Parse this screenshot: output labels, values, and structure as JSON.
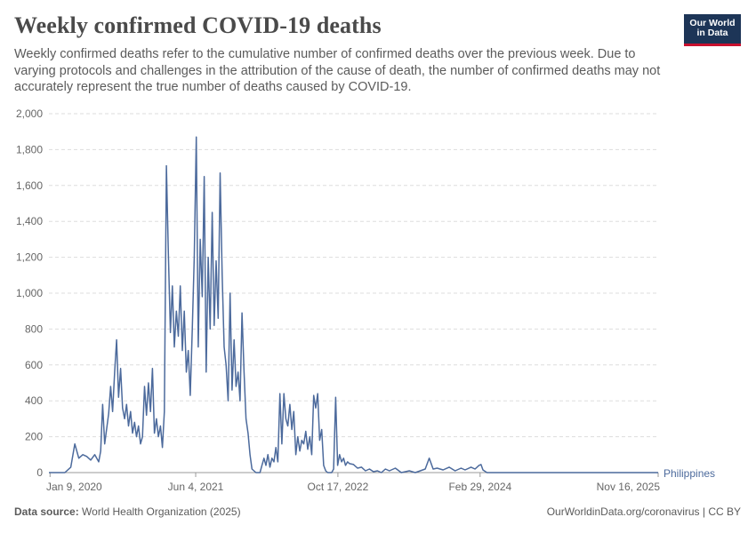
{
  "header": {
    "title": "Weekly confirmed COVID-19 deaths",
    "subtitle": "Weekly confirmed deaths refer to the cumulative number of confirmed deaths over the previous week. Due to varying protocols and challenges in the attribution of the cause of death, the number of confirmed deaths may not accurately represent the true number of deaths caused by COVID-19.",
    "logo_line1": "Our World",
    "logo_line2": "in Data"
  },
  "colors": {
    "series": "#4c6a9c",
    "grid": "#dddddd",
    "logo_bg": "#1d3557",
    "logo_accent": "#c8102e"
  },
  "footer": {
    "source_label": "Data source:",
    "source_value": "World Health Organization (2025)",
    "url": "OurWorldinData.org/coronavirus | CC BY"
  },
  "chart_data": {
    "type": "line",
    "title": "Weekly confirmed COVID-19 deaths",
    "xlabel": "",
    "ylabel": "",
    "xlim": [
      "2020-01-05",
      "2025-11-16"
    ],
    "ylim": [
      0,
      2000
    ],
    "yticks": [
      0,
      200,
      400,
      600,
      800,
      1000,
      1200,
      1400,
      1600,
      1800,
      2000
    ],
    "ytick_labels": [
      "0",
      "200",
      "400",
      "600",
      "800",
      "1,000",
      "1,200",
      "1,400",
      "1,600",
      "1,800",
      "2,000"
    ],
    "xticks": [
      "2020-01-09",
      "2021-06-04",
      "2022-10-17",
      "2024-02-29",
      "2025-11-16"
    ],
    "xtick_labels": [
      "Jan 9, 2020",
      "Jun 4, 2021",
      "Oct 17, 2022",
      "Feb 29, 2024",
      "Nov 16, 2025"
    ],
    "grid": "horizontal dashed",
    "series": [
      {
        "name": "Philippines",
        "color": "#4c6a9c",
        "points": [
          [
            "2020-01-05",
            0
          ],
          [
            "2020-03-01",
            0
          ],
          [
            "2020-03-22",
            30
          ],
          [
            "2020-04-05",
            160
          ],
          [
            "2020-04-19",
            80
          ],
          [
            "2020-05-03",
            100
          ],
          [
            "2020-05-17",
            90
          ],
          [
            "2020-05-31",
            70
          ],
          [
            "2020-06-14",
            100
          ],
          [
            "2020-06-28",
            60
          ],
          [
            "2020-07-05",
            120
          ],
          [
            "2020-07-12",
            380
          ],
          [
            "2020-07-19",
            160
          ],
          [
            "2020-08-02",
            330
          ],
          [
            "2020-08-09",
            480
          ],
          [
            "2020-08-16",
            340
          ],
          [
            "2020-08-23",
            560
          ],
          [
            "2020-08-30",
            740
          ],
          [
            "2020-09-06",
            420
          ],
          [
            "2020-09-13",
            580
          ],
          [
            "2020-09-20",
            360
          ],
          [
            "2020-09-27",
            300
          ],
          [
            "2020-10-04",
            380
          ],
          [
            "2020-10-11",
            260
          ],
          [
            "2020-10-18",
            340
          ],
          [
            "2020-10-25",
            220
          ],
          [
            "2020-11-01",
            280
          ],
          [
            "2020-11-08",
            200
          ],
          [
            "2020-11-15",
            260
          ],
          [
            "2020-11-22",
            160
          ],
          [
            "2020-11-29",
            200
          ],
          [
            "2020-12-06",
            480
          ],
          [
            "2020-12-13",
            320
          ],
          [
            "2020-12-20",
            500
          ],
          [
            "2020-12-27",
            340
          ],
          [
            "2021-01-03",
            580
          ],
          [
            "2021-01-10",
            220
          ],
          [
            "2021-01-17",
            300
          ],
          [
            "2021-01-24",
            200
          ],
          [
            "2021-01-31",
            260
          ],
          [
            "2021-02-07",
            140
          ],
          [
            "2021-02-14",
            340
          ],
          [
            "2021-02-21",
            1710
          ],
          [
            "2021-02-28",
            1220
          ],
          [
            "2021-03-07",
            780
          ],
          [
            "2021-03-14",
            1040
          ],
          [
            "2021-03-21",
            700
          ],
          [
            "2021-03-28",
            900
          ],
          [
            "2021-04-04",
            760
          ],
          [
            "2021-04-11",
            1040
          ],
          [
            "2021-04-18",
            680
          ],
          [
            "2021-04-25",
            900
          ],
          [
            "2021-05-02",
            560
          ],
          [
            "2021-05-09",
            680
          ],
          [
            "2021-05-16",
            430
          ],
          [
            "2021-05-23",
            800
          ],
          [
            "2021-05-30",
            1200
          ],
          [
            "2021-06-06",
            1870
          ],
          [
            "2021-06-13",
            700
          ],
          [
            "2021-06-20",
            1300
          ],
          [
            "2021-06-27",
            980
          ],
          [
            "2021-07-04",
            1650
          ],
          [
            "2021-07-11",
            560
          ],
          [
            "2021-07-18",
            1200
          ],
          [
            "2021-07-25",
            800
          ],
          [
            "2021-08-01",
            1450
          ],
          [
            "2021-08-08",
            820
          ],
          [
            "2021-08-15",
            1180
          ],
          [
            "2021-08-22",
            860
          ],
          [
            "2021-08-29",
            1670
          ],
          [
            "2021-09-05",
            1100
          ],
          [
            "2021-09-12",
            700
          ],
          [
            "2021-09-19",
            600
          ],
          [
            "2021-09-26",
            400
          ],
          [
            "2021-10-03",
            1000
          ],
          [
            "2021-10-10",
            460
          ],
          [
            "2021-10-17",
            740
          ],
          [
            "2021-10-24",
            480
          ],
          [
            "2021-10-31",
            560
          ],
          [
            "2021-11-07",
            400
          ],
          [
            "2021-11-14",
            890
          ],
          [
            "2021-11-21",
            560
          ],
          [
            "2021-11-28",
            300
          ],
          [
            "2021-12-05",
            220
          ],
          [
            "2021-12-12",
            100
          ],
          [
            "2021-12-19",
            20
          ],
          [
            "2022-01-02",
            0
          ],
          [
            "2022-01-16",
            0
          ],
          [
            "2022-01-23",
            40
          ],
          [
            "2022-01-30",
            80
          ],
          [
            "2022-02-06",
            40
          ],
          [
            "2022-02-13",
            100
          ],
          [
            "2022-02-20",
            30
          ],
          [
            "2022-02-27",
            80
          ],
          [
            "2022-03-06",
            60
          ],
          [
            "2022-03-13",
            140
          ],
          [
            "2022-03-20",
            60
          ],
          [
            "2022-03-27",
            440
          ],
          [
            "2022-04-03",
            160
          ],
          [
            "2022-04-10",
            440
          ],
          [
            "2022-04-17",
            300
          ],
          [
            "2022-04-24",
            260
          ],
          [
            "2022-05-01",
            380
          ],
          [
            "2022-05-08",
            240
          ],
          [
            "2022-05-15",
            340
          ],
          [
            "2022-05-22",
            100
          ],
          [
            "2022-05-29",
            200
          ],
          [
            "2022-06-05",
            120
          ],
          [
            "2022-06-12",
            180
          ],
          [
            "2022-06-19",
            160
          ],
          [
            "2022-06-26",
            230
          ],
          [
            "2022-07-03",
            130
          ],
          [
            "2022-07-10",
            200
          ],
          [
            "2022-07-17",
            100
          ],
          [
            "2022-07-24",
            430
          ],
          [
            "2022-07-31",
            360
          ],
          [
            "2022-08-07",
            440
          ],
          [
            "2022-08-14",
            180
          ],
          [
            "2022-08-21",
            240
          ],
          [
            "2022-08-28",
            40
          ],
          [
            "2022-09-04",
            10
          ],
          [
            "2022-09-11",
            0
          ],
          [
            "2022-09-25",
            0
          ],
          [
            "2022-10-02",
            20
          ],
          [
            "2022-10-09",
            420
          ],
          [
            "2022-10-16",
            40
          ],
          [
            "2022-10-23",
            100
          ],
          [
            "2022-10-30",
            60
          ],
          [
            "2022-11-06",
            80
          ],
          [
            "2022-11-13",
            40
          ],
          [
            "2022-11-20",
            60
          ],
          [
            "2022-11-27",
            50
          ],
          [
            "2022-12-11",
            45
          ],
          [
            "2022-12-25",
            25
          ],
          [
            "2023-01-08",
            30
          ],
          [
            "2023-01-22",
            10
          ],
          [
            "2023-02-05",
            20
          ],
          [
            "2023-02-19",
            5
          ],
          [
            "2023-03-05",
            10
          ],
          [
            "2023-03-19",
            0
          ],
          [
            "2023-04-02",
            20
          ],
          [
            "2023-04-16",
            10
          ],
          [
            "2023-05-07",
            25
          ],
          [
            "2023-05-28",
            0
          ],
          [
            "2023-06-25",
            10
          ],
          [
            "2023-07-16",
            0
          ],
          [
            "2023-08-20",
            20
          ],
          [
            "2023-09-03",
            80
          ],
          [
            "2023-09-17",
            20
          ],
          [
            "2023-10-01",
            25
          ],
          [
            "2023-10-22",
            15
          ],
          [
            "2023-11-12",
            30
          ],
          [
            "2023-12-03",
            10
          ],
          [
            "2023-12-24",
            25
          ],
          [
            "2024-01-07",
            15
          ],
          [
            "2024-01-28",
            30
          ],
          [
            "2024-02-11",
            20
          ],
          [
            "2024-02-25",
            40
          ],
          [
            "2024-03-03",
            45
          ],
          [
            "2024-03-10",
            15
          ],
          [
            "2024-03-24",
            0
          ],
          [
            "2025-11-16",
            0
          ]
        ]
      }
    ]
  }
}
